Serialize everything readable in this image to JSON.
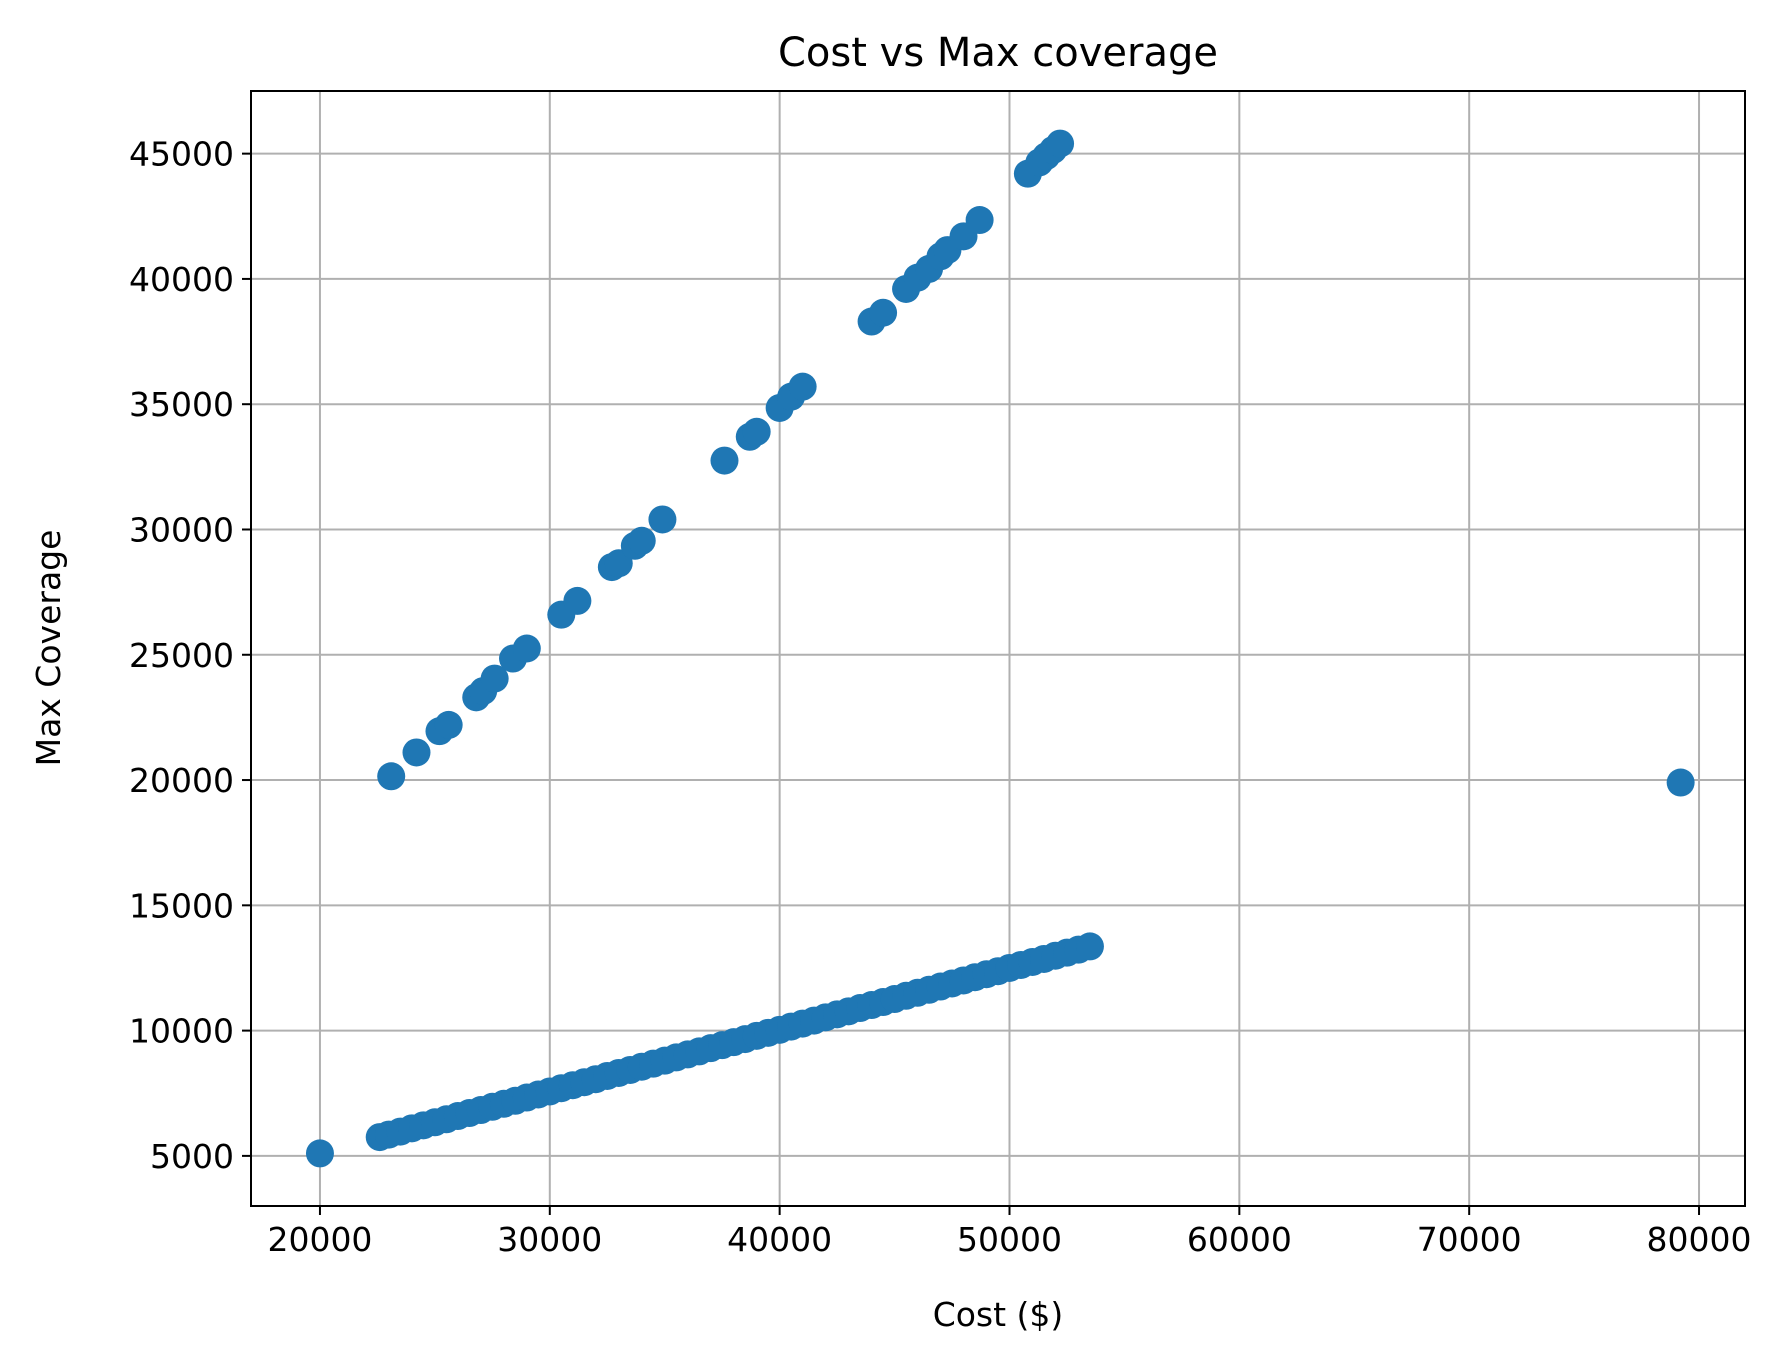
{
  "chart_data": {
    "type": "scatter",
    "title": "Cost vs Max coverage",
    "xlabel": "Cost ($)",
    "ylabel": "Max Coverage",
    "xlim": [
      17000,
      82000
    ],
    "ylim": [
      3000,
      47500
    ],
    "xticks": [
      20000,
      30000,
      40000,
      50000,
      60000,
      70000,
      80000
    ],
    "yticks": [
      5000,
      10000,
      15000,
      20000,
      25000,
      30000,
      35000,
      40000,
      45000
    ],
    "xtick_labels": [
      "20000",
      "30000",
      "40000",
      "50000",
      "60000",
      "70000",
      "80000"
    ],
    "ytick_labels": [
      "5000",
      "10000",
      "15000",
      "20000",
      "25000",
      "30000",
      "35000",
      "40000",
      "45000"
    ],
    "grid": true,
    "marker_color": "#1f77b4",
    "series": [
      {
        "points": [
          [
            20000,
            5100
          ],
          [
            22600,
            5750
          ],
          [
            23000,
            5850
          ],
          [
            23500,
            5970
          ],
          [
            24000,
            6100
          ],
          [
            24500,
            6220
          ],
          [
            25000,
            6340
          ],
          [
            25500,
            6460
          ],
          [
            26000,
            6590
          ],
          [
            26500,
            6710
          ],
          [
            27000,
            6830
          ],
          [
            27500,
            6960
          ],
          [
            28000,
            7080
          ],
          [
            28500,
            7200
          ],
          [
            29000,
            7330
          ],
          [
            29500,
            7450
          ],
          [
            30000,
            7570
          ],
          [
            30500,
            7700
          ],
          [
            31000,
            7820
          ],
          [
            31500,
            7940
          ],
          [
            32000,
            8060
          ],
          [
            32500,
            8190
          ],
          [
            33000,
            8310
          ],
          [
            33500,
            8430
          ],
          [
            34000,
            8560
          ],
          [
            34500,
            8680
          ],
          [
            35000,
            8800
          ],
          [
            35500,
            8930
          ],
          [
            36000,
            9050
          ],
          [
            36500,
            9170
          ],
          [
            37000,
            9300
          ],
          [
            37500,
            9420
          ],
          [
            38000,
            9540
          ],
          [
            38500,
            9660
          ],
          [
            39000,
            9790
          ],
          [
            39500,
            9910
          ],
          [
            40000,
            10030
          ],
          [
            40500,
            10160
          ],
          [
            41000,
            10280
          ],
          [
            41500,
            10400
          ],
          [
            42000,
            10530
          ],
          [
            42500,
            10650
          ],
          [
            43000,
            10770
          ],
          [
            43500,
            10900
          ],
          [
            44000,
            11020
          ],
          [
            44500,
            11140
          ],
          [
            45000,
            11260
          ],
          [
            45500,
            11390
          ],
          [
            46000,
            11510
          ],
          [
            46500,
            11630
          ],
          [
            47000,
            11760
          ],
          [
            47500,
            11880
          ],
          [
            48000,
            12000
          ],
          [
            48500,
            12130
          ],
          [
            49000,
            12250
          ],
          [
            49500,
            12370
          ],
          [
            50000,
            12500
          ],
          [
            50500,
            12620
          ],
          [
            51000,
            12740
          ],
          [
            51500,
            12860
          ],
          [
            52000,
            12990
          ],
          [
            52500,
            13110
          ],
          [
            53000,
            13230
          ],
          [
            53500,
            13360
          ],
          [
            23100,
            20150
          ],
          [
            24200,
            21100
          ],
          [
            25200,
            21950
          ],
          [
            25600,
            22200
          ],
          [
            26800,
            23300
          ],
          [
            27100,
            23550
          ],
          [
            27600,
            24050
          ],
          [
            28400,
            24850
          ],
          [
            29000,
            25250
          ],
          [
            30500,
            26600
          ],
          [
            31200,
            27150
          ],
          [
            32700,
            28500
          ],
          [
            33000,
            28650
          ],
          [
            33700,
            29350
          ],
          [
            34000,
            29550
          ],
          [
            34900,
            30400
          ],
          [
            37600,
            32750
          ],
          [
            38700,
            33700
          ],
          [
            39000,
            33900
          ],
          [
            40000,
            34850
          ],
          [
            40500,
            35300
          ],
          [
            41000,
            35700
          ],
          [
            44000,
            38300
          ],
          [
            44500,
            38650
          ],
          [
            45500,
            39600
          ],
          [
            46000,
            40050
          ],
          [
            46500,
            40400
          ],
          [
            47000,
            40900
          ],
          [
            47300,
            41150
          ],
          [
            48000,
            41700
          ],
          [
            48700,
            42350
          ],
          [
            50800,
            44200
          ],
          [
            51300,
            44650
          ],
          [
            51600,
            44900
          ],
          [
            51900,
            45150
          ],
          [
            52200,
            45400
          ],
          [
            79200,
            19900
          ]
        ]
      }
    ]
  }
}
